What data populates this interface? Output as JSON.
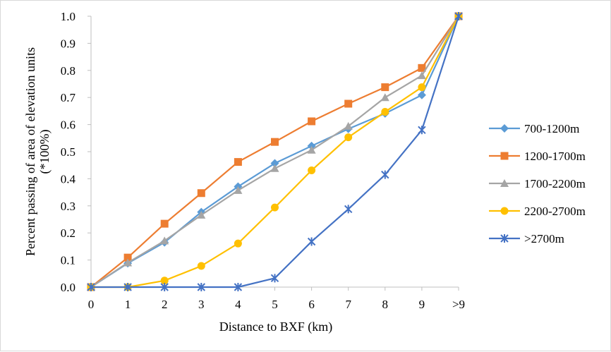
{
  "chart_data": {
    "type": "line",
    "title": "",
    "xlabel": "Distance to BXF (km)",
    "ylabel": "Percent passing of area of elevation units",
    "ylabel_line2": "(*100%)",
    "categories": [
      "0",
      "1",
      "2",
      "3",
      "4",
      "5",
      "6",
      "7",
      "8",
      "9",
      ">9"
    ],
    "ylim": [
      0,
      1
    ],
    "yticks": [
      "0.0",
      "0.1",
      "0.2",
      "0.3",
      "0.4",
      "0.5",
      "0.6",
      "0.7",
      "0.8",
      "0.9",
      "1.0"
    ],
    "grid": false,
    "legend_position": "right",
    "series": [
      {
        "name": " 700-1200m",
        "color": "#5b9bd5",
        "marker": "diamond",
        "values": [
          0.0,
          0.088,
          0.165,
          0.277,
          0.371,
          0.457,
          0.521,
          0.584,
          0.641,
          0.709,
          1.0
        ]
      },
      {
        "name": "1200-1700m",
        "color": "#ed7d31",
        "marker": "square",
        "values": [
          0.0,
          0.109,
          0.234,
          0.347,
          0.462,
          0.536,
          0.612,
          0.677,
          0.738,
          0.809,
          1.0
        ]
      },
      {
        "name": "1700-2200m",
        "color": "#a5a5a5",
        "marker": "triangle",
        "values": [
          0.0,
          0.09,
          0.171,
          0.266,
          0.357,
          0.438,
          0.506,
          0.594,
          0.7,
          0.781,
          1.0
        ]
      },
      {
        "name": "2200-2700m",
        "color": "#ffc000",
        "marker": "circle",
        "values": [
          0.0,
          0.0,
          0.024,
          0.078,
          0.161,
          0.294,
          0.431,
          0.553,
          0.647,
          0.738,
          1.0
        ]
      },
      {
        "name": ">2700m",
        "color": "#4472c4",
        "marker": "asterisk",
        "values": [
          0.0,
          0.0,
          0.0,
          0.0,
          0.0,
          0.033,
          0.168,
          0.288,
          0.415,
          0.58,
          1.0
        ]
      }
    ]
  }
}
